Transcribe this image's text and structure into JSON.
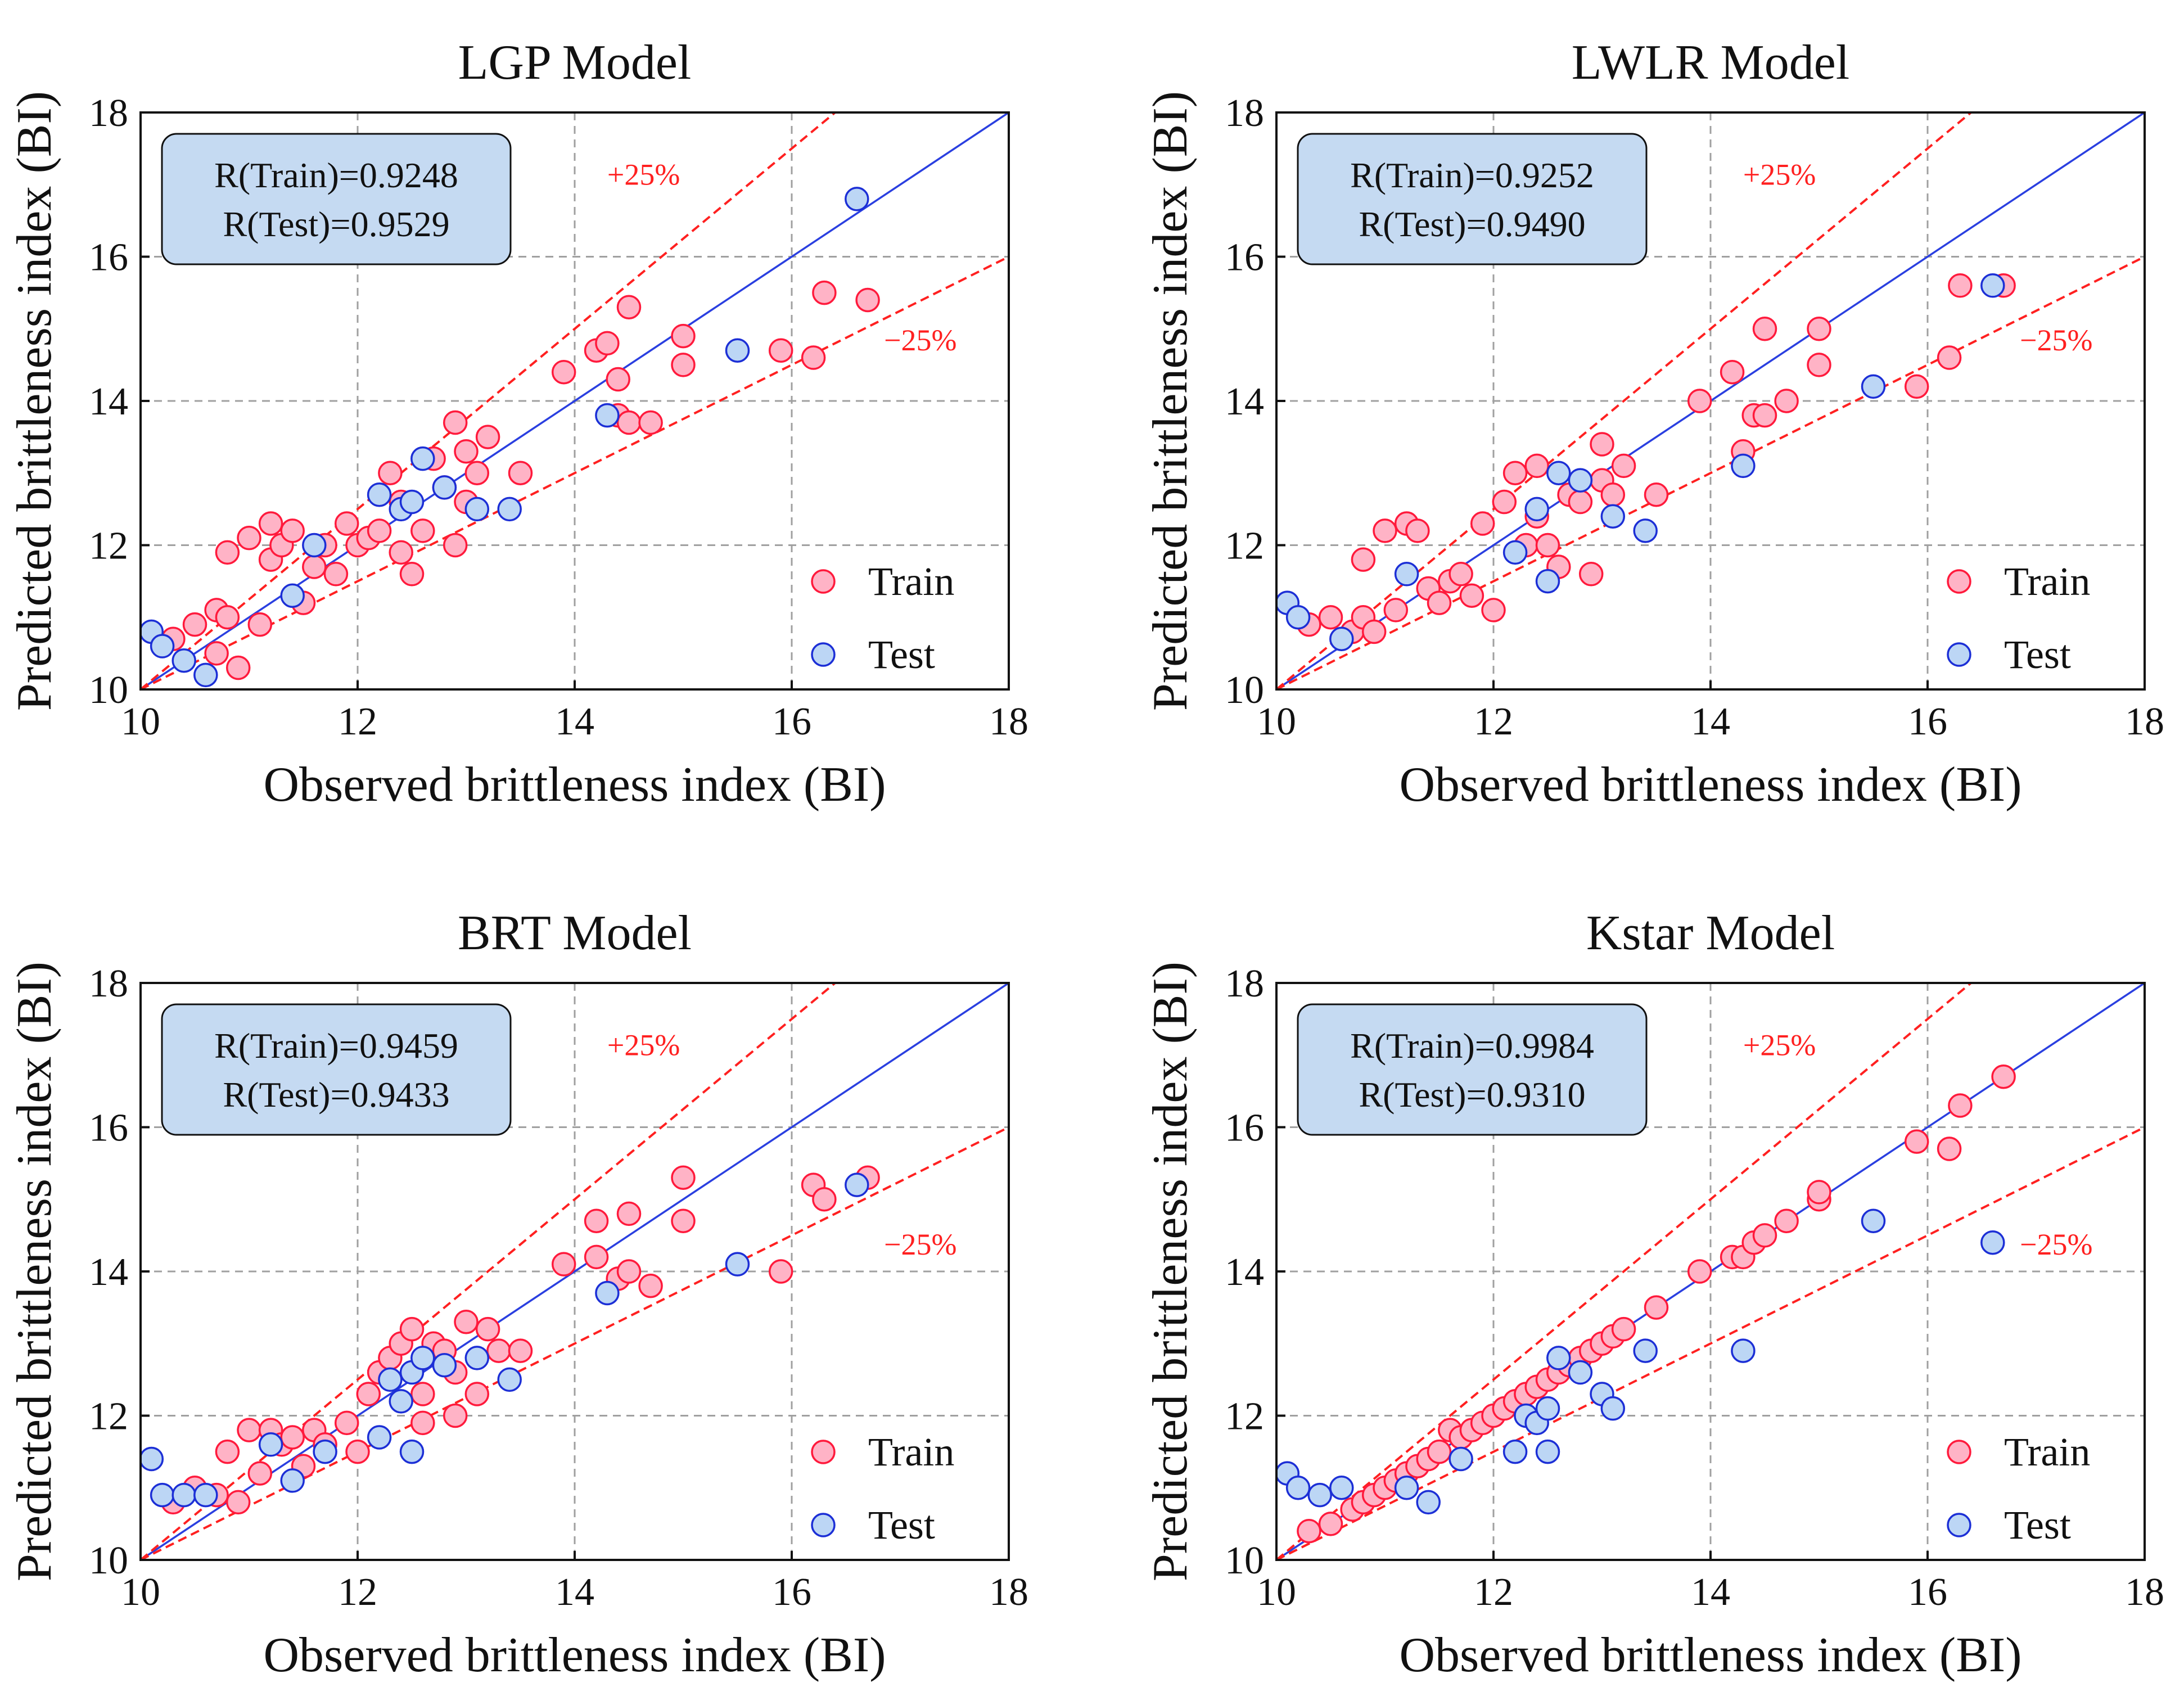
{
  "figure": {
    "xlabel": "Observed brittleness index (BI)",
    "ylabel": "Predicted brittleness index (BI)",
    "legend": {
      "train": "Train",
      "test": "Test"
    },
    "band_labels": {
      "plus": "+25%",
      "minus": "−25%"
    },
    "colors": {
      "train_fill": "#ffb3c6",
      "train_edge": "#ff1a3c",
      "test_fill": "#bcd6f5",
      "test_edge": "#1c2fd6",
      "ideal_line": "#2a3fe0",
      "band_line": "#ff2020",
      "box_fill": "#c5daf2",
      "grid": "#a0a0a0"
    }
  },
  "chart_data": [
    {
      "type": "scatter",
      "title": "LGP Model",
      "r_train": "R(Train)=0.9248",
      "r_test": "R(Test)=0.9529",
      "xlim": [
        10,
        18
      ],
      "ylim": [
        10,
        18
      ],
      "xticks": [
        "10",
        "12",
        "14",
        "16",
        "18"
      ],
      "yticks": [
        "10",
        "12",
        "14",
        "16",
        "18"
      ],
      "train": [
        [
          10.3,
          10.7
        ],
        [
          10.5,
          10.9
        ],
        [
          10.7,
          10.5
        ],
        [
          10.7,
          11.1
        ],
        [
          10.8,
          11.0
        ],
        [
          10.8,
          11.9
        ],
        [
          10.9,
          10.3
        ],
        [
          11.0,
          12.1
        ],
        [
          11.1,
          10.9
        ],
        [
          11.2,
          12.3
        ],
        [
          11.2,
          11.8
        ],
        [
          11.3,
          12.0
        ],
        [
          11.4,
          12.2
        ],
        [
          11.5,
          11.2
        ],
        [
          11.6,
          11.7
        ],
        [
          11.7,
          12.0
        ],
        [
          11.8,
          11.6
        ],
        [
          11.9,
          12.3
        ],
        [
          12.0,
          12.0
        ],
        [
          12.1,
          12.1
        ],
        [
          12.2,
          12.2
        ],
        [
          12.3,
          13.0
        ],
        [
          12.4,
          12.6
        ],
        [
          12.4,
          11.9
        ],
        [
          12.5,
          11.6
        ],
        [
          12.6,
          12.2
        ],
        [
          12.7,
          13.2
        ],
        [
          12.8,
          12.8
        ],
        [
          12.9,
          12.0
        ],
        [
          12.9,
          13.7
        ],
        [
          13.0,
          13.3
        ],
        [
          13.0,
          12.6
        ],
        [
          13.1,
          13.0
        ],
        [
          13.2,
          13.5
        ],
        [
          13.5,
          13.0
        ],
        [
          13.9,
          14.4
        ],
        [
          14.2,
          14.7
        ],
        [
          14.3,
          14.8
        ],
        [
          14.4,
          14.3
        ],
        [
          14.4,
          13.8
        ],
        [
          14.5,
          15.3
        ],
        [
          14.5,
          13.7
        ],
        [
          14.7,
          13.7
        ],
        [
          15.0,
          14.9
        ],
        [
          15.0,
          14.5
        ],
        [
          15.9,
          14.7
        ],
        [
          16.2,
          14.6
        ],
        [
          16.3,
          15.5
        ],
        [
          16.7,
          15.4
        ]
      ],
      "test": [
        [
          10.1,
          10.8
        ],
        [
          10.2,
          10.6
        ],
        [
          10.4,
          10.4
        ],
        [
          10.6,
          10.2
        ],
        [
          11.4,
          11.3
        ],
        [
          11.6,
          12.0
        ],
        [
          12.2,
          12.7
        ],
        [
          12.4,
          12.5
        ],
        [
          12.5,
          12.6
        ],
        [
          12.6,
          13.2
        ],
        [
          12.8,
          12.8
        ],
        [
          13.1,
          12.5
        ],
        [
          13.4,
          12.5
        ],
        [
          14.3,
          13.8
        ],
        [
          15.5,
          14.7
        ],
        [
          16.6,
          16.8
        ]
      ]
    },
    {
      "type": "scatter",
      "title": "LWLR Model",
      "r_train": "R(Train)=0.9252",
      "r_test": "R(Test)=0.9490",
      "xlim": [
        10,
        18
      ],
      "ylim": [
        10,
        18
      ],
      "xticks": [
        "10",
        "12",
        "14",
        "16",
        "18"
      ],
      "yticks": [
        "10",
        "12",
        "14",
        "16",
        "18"
      ],
      "train": [
        [
          10.3,
          10.9
        ],
        [
          10.5,
          11.0
        ],
        [
          10.7,
          10.8
        ],
        [
          10.8,
          11.0
        ],
        [
          10.8,
          11.8
        ],
        [
          10.9,
          10.8
        ],
        [
          11.0,
          12.2
        ],
        [
          11.1,
          11.1
        ],
        [
          11.2,
          12.3
        ],
        [
          11.3,
          12.2
        ],
        [
          11.4,
          11.4
        ],
        [
          11.5,
          11.2
        ],
        [
          11.6,
          11.5
        ],
        [
          11.7,
          11.6
        ],
        [
          11.8,
          11.3
        ],
        [
          11.9,
          12.3
        ],
        [
          12.0,
          11.1
        ],
        [
          12.1,
          12.6
        ],
        [
          12.2,
          13.0
        ],
        [
          12.3,
          12.0
        ],
        [
          12.4,
          12.4
        ],
        [
          12.4,
          13.1
        ],
        [
          12.5,
          12.0
        ],
        [
          12.6,
          11.7
        ],
        [
          12.7,
          12.7
        ],
        [
          12.8,
          12.6
        ],
        [
          12.9,
          11.6
        ],
        [
          13.0,
          13.4
        ],
        [
          13.0,
          12.9
        ],
        [
          13.1,
          12.7
        ],
        [
          13.2,
          13.1
        ],
        [
          13.5,
          12.7
        ],
        [
          13.9,
          14.0
        ],
        [
          14.2,
          14.4
        ],
        [
          14.3,
          13.3
        ],
        [
          14.4,
          13.8
        ],
        [
          14.5,
          15.0
        ],
        [
          14.5,
          13.8
        ],
        [
          14.7,
          14.0
        ],
        [
          15.0,
          15.0
        ],
        [
          15.0,
          14.5
        ],
        [
          15.9,
          14.2
        ],
        [
          16.2,
          14.6
        ],
        [
          16.3,
          15.6
        ],
        [
          16.7,
          15.6
        ]
      ],
      "test": [
        [
          10.1,
          11.2
        ],
        [
          10.2,
          11.0
        ],
        [
          10.6,
          10.7
        ],
        [
          11.2,
          11.6
        ],
        [
          12.2,
          11.9
        ],
        [
          12.4,
          12.5
        ],
        [
          12.5,
          11.5
        ],
        [
          12.6,
          13.0
        ],
        [
          12.8,
          12.9
        ],
        [
          13.1,
          12.4
        ],
        [
          13.4,
          12.2
        ],
        [
          14.3,
          13.1
        ],
        [
          15.5,
          14.2
        ],
        [
          16.6,
          15.6
        ]
      ]
    },
    {
      "type": "scatter",
      "title": "BRT Model",
      "r_train": "R(Train)=0.9459",
      "r_test": "R(Test)=0.9433",
      "xlim": [
        10,
        18
      ],
      "ylim": [
        10,
        18
      ],
      "xticks": [
        "10",
        "12",
        "14",
        "16",
        "18"
      ],
      "yticks": [
        "10",
        "12",
        "14",
        "16",
        "18"
      ],
      "train": [
        [
          10.3,
          10.8
        ],
        [
          10.5,
          11.0
        ],
        [
          10.7,
          10.9
        ],
        [
          10.8,
          11.5
        ],
        [
          10.9,
          10.8
        ],
        [
          11.0,
          11.8
        ],
        [
          11.1,
          11.2
        ],
        [
          11.2,
          11.8
        ],
        [
          11.3,
          11.6
        ],
        [
          11.4,
          11.7
        ],
        [
          11.5,
          11.3
        ],
        [
          11.6,
          11.8
        ],
        [
          11.7,
          11.6
        ],
        [
          11.9,
          11.9
        ],
        [
          12.0,
          11.5
        ],
        [
          12.1,
          12.3
        ],
        [
          12.2,
          12.6
        ],
        [
          12.3,
          12.8
        ],
        [
          12.4,
          13.0
        ],
        [
          12.5,
          13.2
        ],
        [
          12.6,
          12.3
        ],
        [
          12.6,
          11.9
        ],
        [
          12.7,
          13.0
        ],
        [
          12.8,
          12.9
        ],
        [
          12.9,
          12.0
        ],
        [
          12.9,
          12.6
        ],
        [
          13.0,
          13.3
        ],
        [
          13.1,
          12.3
        ],
        [
          13.2,
          13.2
        ],
        [
          13.3,
          12.9
        ],
        [
          13.5,
          12.9
        ],
        [
          13.9,
          14.1
        ],
        [
          14.2,
          14.7
        ],
        [
          14.2,
          14.2
        ],
        [
          14.4,
          13.9
        ],
        [
          14.5,
          14.8
        ],
        [
          14.5,
          14.0
        ],
        [
          14.7,
          13.8
        ],
        [
          15.0,
          15.3
        ],
        [
          15.0,
          14.7
        ],
        [
          15.9,
          14.0
        ],
        [
          16.2,
          15.2
        ],
        [
          16.3,
          15.0
        ],
        [
          16.7,
          15.3
        ]
      ],
      "test": [
        [
          10.1,
          11.4
        ],
        [
          10.2,
          10.9
        ],
        [
          10.4,
          10.9
        ],
        [
          10.6,
          10.9
        ],
        [
          11.2,
          11.6
        ],
        [
          11.4,
          11.1
        ],
        [
          11.7,
          11.5
        ],
        [
          12.2,
          11.7
        ],
        [
          12.3,
          12.5
        ],
        [
          12.4,
          12.2
        ],
        [
          12.5,
          11.5
        ],
        [
          12.5,
          12.6
        ],
        [
          12.6,
          12.8
        ],
        [
          12.8,
          12.7
        ],
        [
          13.1,
          12.8
        ],
        [
          13.4,
          12.5
        ],
        [
          14.3,
          13.7
        ],
        [
          15.5,
          14.1
        ],
        [
          16.6,
          15.2
        ]
      ]
    },
    {
      "type": "scatter",
      "title": "Kstar Model",
      "r_train": "R(Train)=0.9984",
      "r_test": "R(Test)=0.9310",
      "xlim": [
        10,
        18
      ],
      "ylim": [
        10,
        18
      ],
      "xticks": [
        "10",
        "12",
        "14",
        "16",
        "18"
      ],
      "yticks": [
        "10",
        "12",
        "14",
        "16",
        "18"
      ],
      "train": [
        [
          10.3,
          10.4
        ],
        [
          10.5,
          10.5
        ],
        [
          10.7,
          10.7
        ],
        [
          10.8,
          10.8
        ],
        [
          10.9,
          10.9
        ],
        [
          11.0,
          11.0
        ],
        [
          11.1,
          11.1
        ],
        [
          11.2,
          11.2
        ],
        [
          11.3,
          11.3
        ],
        [
          11.4,
          11.4
        ],
        [
          11.5,
          11.5
        ],
        [
          11.6,
          11.8
        ],
        [
          11.7,
          11.7
        ],
        [
          11.8,
          11.8
        ],
        [
          11.9,
          11.9
        ],
        [
          12.0,
          12.0
        ],
        [
          12.1,
          12.1
        ],
        [
          12.2,
          12.2
        ],
        [
          12.3,
          12.3
        ],
        [
          12.4,
          12.4
        ],
        [
          12.5,
          12.5
        ],
        [
          12.6,
          12.6
        ],
        [
          12.7,
          12.7
        ],
        [
          12.8,
          12.8
        ],
        [
          12.9,
          12.9
        ],
        [
          13.0,
          13.0
        ],
        [
          13.1,
          13.1
        ],
        [
          13.2,
          13.2
        ],
        [
          13.5,
          13.5
        ],
        [
          13.9,
          14.0
        ],
        [
          14.2,
          14.2
        ],
        [
          14.3,
          14.2
        ],
        [
          14.4,
          14.4
        ],
        [
          14.5,
          14.5
        ],
        [
          14.7,
          14.7
        ],
        [
          15.0,
          15.0
        ],
        [
          15.0,
          15.1
        ],
        [
          15.9,
          15.8
        ],
        [
          16.2,
          15.7
        ],
        [
          16.3,
          16.3
        ],
        [
          16.7,
          16.7
        ]
      ],
      "test": [
        [
          10.1,
          11.2
        ],
        [
          10.2,
          11.0
        ],
        [
          10.4,
          10.9
        ],
        [
          10.6,
          11.0
        ],
        [
          11.2,
          11.0
        ],
        [
          11.4,
          10.8
        ],
        [
          11.7,
          11.4
        ],
        [
          12.2,
          11.5
        ],
        [
          12.3,
          12.0
        ],
        [
          12.4,
          11.9
        ],
        [
          12.5,
          11.5
        ],
        [
          12.5,
          12.1
        ],
        [
          12.6,
          12.8
        ],
        [
          12.8,
          12.6
        ],
        [
          13.0,
          12.3
        ],
        [
          13.1,
          12.1
        ],
        [
          13.4,
          12.9
        ],
        [
          14.3,
          12.9
        ],
        [
          15.5,
          14.7
        ],
        [
          16.6,
          14.4
        ]
      ]
    }
  ]
}
